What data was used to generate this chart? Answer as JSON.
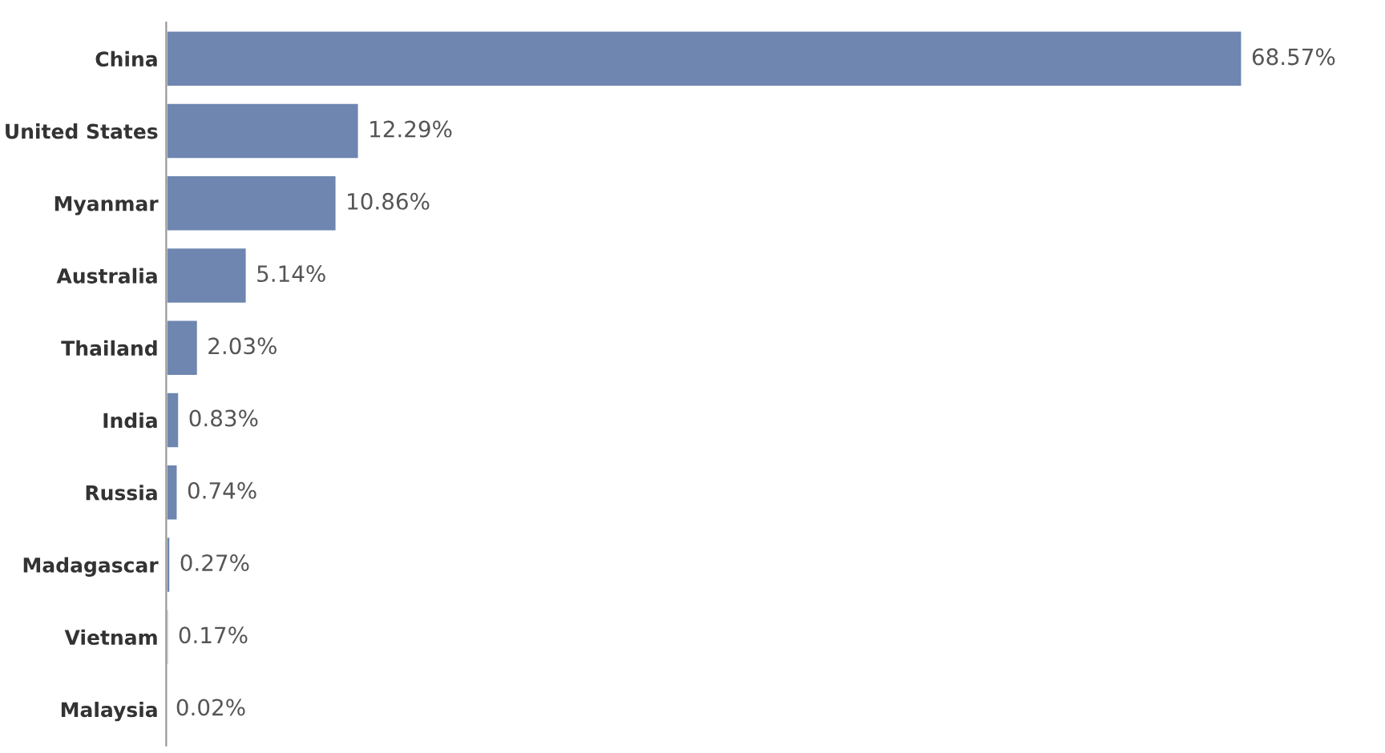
{
  "chart_data": {
    "type": "bar",
    "orientation": "horizontal",
    "categories": [
      "China",
      "United States",
      "Myanmar",
      "Australia",
      "Thailand",
      "India",
      "Russia",
      "Madagascar",
      "Vietnam",
      "Malaysia"
    ],
    "values": [
      68.57,
      12.29,
      10.86,
      5.14,
      2.03,
      0.83,
      0.74,
      0.27,
      0.17,
      0.02
    ],
    "value_labels": [
      "68.57%",
      "12.29%",
      "10.86%",
      "5.14%",
      "2.03%",
      "0.83%",
      "0.74%",
      "0.27%",
      "0.17%",
      "0.02%"
    ],
    "color": "#6e86b0",
    "grid": false,
    "legend": false,
    "tick_labels": "y"
  }
}
